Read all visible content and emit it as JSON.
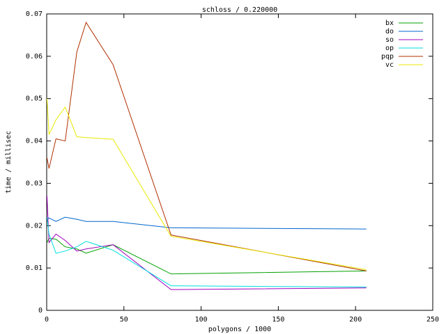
{
  "chart_data": {
    "type": "line",
    "title": "schloss / 0.220000",
    "xlabel": "polygons / 1000",
    "ylabel": "time / millisec",
    "x": [
      0.2,
      1.5,
      6,
      12,
      19.5,
      25.5,
      43,
      80.5,
      207
    ],
    "xlim": [
      0,
      250
    ],
    "xticks": [
      0,
      50,
      100,
      150,
      200,
      250
    ],
    "ylim": [
      0,
      0.07
    ],
    "yticks": [
      0,
      0.01,
      0.02,
      0.03,
      0.04,
      0.05,
      0.06,
      0.07
    ],
    "grid": false,
    "legend": "top-right",
    "series": [
      {
        "name": "bx",
        "color": "#00a000",
        "values": [
          0.016,
          0.017,
          0.0168,
          0.015,
          0.0145,
          0.0135,
          0.0155,
          0.0086,
          0.0093
        ]
      },
      {
        "name": "do",
        "color": "#0066cc",
        "values": [
          0.0215,
          0.0218,
          0.021,
          0.022,
          0.0215,
          0.021,
          0.021,
          0.0195,
          0.0192
        ]
      },
      {
        "name": "so",
        "color": "#a000c0",
        "values": [
          0.027,
          0.016,
          0.018,
          0.0165,
          0.014,
          0.0145,
          0.0155,
          0.0049,
          0.0053
        ]
      },
      {
        "name": "op",
        "color": "#00dddd",
        "values": [
          0.022,
          0.018,
          0.0135,
          0.014,
          0.015,
          0.0163,
          0.0142,
          0.0058,
          0.0055
        ]
      },
      {
        "name": "pqp",
        "color": "#b03000",
        "values": [
          0.036,
          0.0335,
          0.0405,
          0.04,
          0.061,
          0.068,
          0.058,
          0.0178,
          0.0093
        ]
      },
      {
        "name": "vc",
        "color": "#e8e800",
        "values": [
          0.05,
          0.0415,
          0.045,
          0.048,
          0.041,
          0.0408,
          0.0404,
          0.0175,
          0.0096
        ]
      }
    ]
  }
}
